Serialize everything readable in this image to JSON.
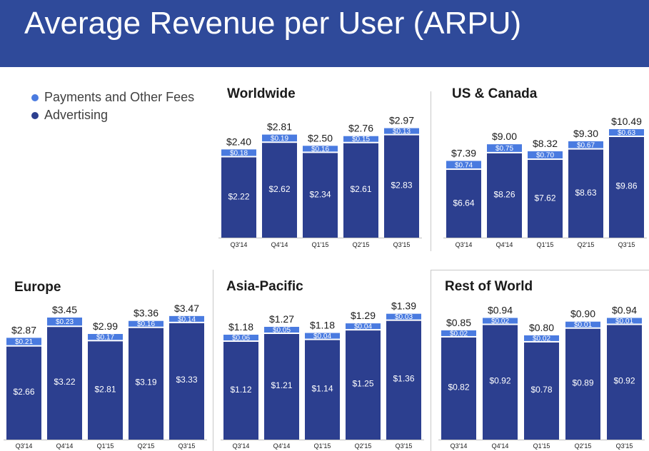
{
  "header": {
    "title": "Average Revenue per User (ARPU)"
  },
  "legend": {
    "items": [
      {
        "label": "Payments and Other Fees",
        "color": "#4a7be0"
      },
      {
        "label": "Advertising",
        "color": "#2c3f8f"
      }
    ]
  },
  "colors": {
    "header_bg": "#2f4a9a",
    "advertising": "#2c3f8f",
    "payments": "#4a7be0",
    "axis": "#bfbfbf"
  },
  "chart_data": [
    {
      "type": "bar",
      "stacked": true,
      "title": "Worldwide",
      "categories": [
        "Q3'14",
        "Q4'14",
        "Q1'15",
        "Q2'15",
        "Q3'15"
      ],
      "series": [
        {
          "name": "Advertising",
          "values": [
            2.22,
            2.62,
            2.34,
            2.61,
            2.83
          ],
          "labels": [
            "$2.22",
            "$2.62",
            "$2.34",
            "$2.61",
            "$2.83"
          ]
        },
        {
          "name": "Payments and Other Fees",
          "values": [
            0.18,
            0.19,
            0.16,
            0.15,
            0.13
          ],
          "labels": [
            "$0.18",
            "$0.19",
            "$0.16",
            "$0.15",
            "$0.13"
          ]
        }
      ],
      "totals": [
        "$2.40",
        "$2.81",
        "$2.50",
        "$2.76",
        "$2.97"
      ]
    },
    {
      "type": "bar",
      "stacked": true,
      "title": "US & Canada",
      "categories": [
        "Q3'14",
        "Q4'14",
        "Q1'15",
        "Q2'15",
        "Q3'15"
      ],
      "series": [
        {
          "name": "Advertising",
          "values": [
            6.64,
            8.26,
            7.62,
            8.63,
            9.86
          ],
          "labels": [
            "$6.64",
            "$8.26",
            "$7.62",
            "$8.63",
            "$9.86"
          ]
        },
        {
          "name": "Payments and Other Fees",
          "values": [
            0.74,
            0.75,
            0.7,
            0.67,
            0.63
          ],
          "labels": [
            "$0.74",
            "$0.75",
            "$0.70",
            "$0.67",
            "$0.63"
          ]
        }
      ],
      "totals": [
        "$7.39",
        "$9.00",
        "$8.32",
        "$9.30",
        "$10.49"
      ]
    },
    {
      "type": "bar",
      "stacked": true,
      "title": "Europe",
      "categories": [
        "Q3'14",
        "Q4'14",
        "Q1'15",
        "Q2'15",
        "Q3'15"
      ],
      "series": [
        {
          "name": "Advertising",
          "values": [
            2.66,
            3.22,
            2.81,
            3.19,
            3.33
          ],
          "labels": [
            "$2.66",
            "$3.22",
            "$2.81",
            "$3.19",
            "$3.33"
          ]
        },
        {
          "name": "Payments and Other Fees",
          "values": [
            0.21,
            0.23,
            0.17,
            0.16,
            0.14
          ],
          "labels": [
            "$0.21",
            "$0.23",
            "$0.17",
            "$0.16",
            "$0.14"
          ]
        }
      ],
      "totals": [
        "$2.87",
        "$3.45",
        "$2.99",
        "$3.36",
        "$3.47"
      ]
    },
    {
      "type": "bar",
      "stacked": true,
      "title": "Asia-Pacific",
      "categories": [
        "Q3'14",
        "Q4'14",
        "Q1'15",
        "Q2'15",
        "Q3'15"
      ],
      "series": [
        {
          "name": "Advertising",
          "values": [
            1.12,
            1.21,
            1.14,
            1.25,
            1.36
          ],
          "labels": [
            "$1.12",
            "$1.21",
            "$1.14",
            "$1.25",
            "$1.36"
          ]
        },
        {
          "name": "Payments and Other Fees",
          "values": [
            0.06,
            0.05,
            0.04,
            0.04,
            0.03
          ],
          "labels": [
            "$0.06",
            "$0.05",
            "$0.04",
            "$0.04",
            "$0.03"
          ]
        }
      ],
      "totals": [
        "$1.18",
        "$1.27",
        "$1.18",
        "$1.29",
        "$1.39"
      ]
    },
    {
      "type": "bar",
      "stacked": true,
      "title": "Rest of World",
      "categories": [
        "Q3'14",
        "Q4'14",
        "Q1'15",
        "Q2'15",
        "Q3'15"
      ],
      "series": [
        {
          "name": "Advertising",
          "values": [
            0.82,
            0.92,
            0.78,
            0.89,
            0.92
          ],
          "labels": [
            "$0.82",
            "$0.92",
            "$0.78",
            "$0.89",
            "$0.92"
          ]
        },
        {
          "name": "Payments and Other Fees",
          "values": [
            0.02,
            0.02,
            0.02,
            0.01,
            0.01
          ],
          "labels": [
            "$0.02",
            "$0.02",
            "$0.02",
            "$0.01",
            "$0.01"
          ]
        }
      ],
      "totals": [
        "$0.85",
        "$0.94",
        "$0.80",
        "$0.90",
        "$0.94"
      ]
    }
  ]
}
